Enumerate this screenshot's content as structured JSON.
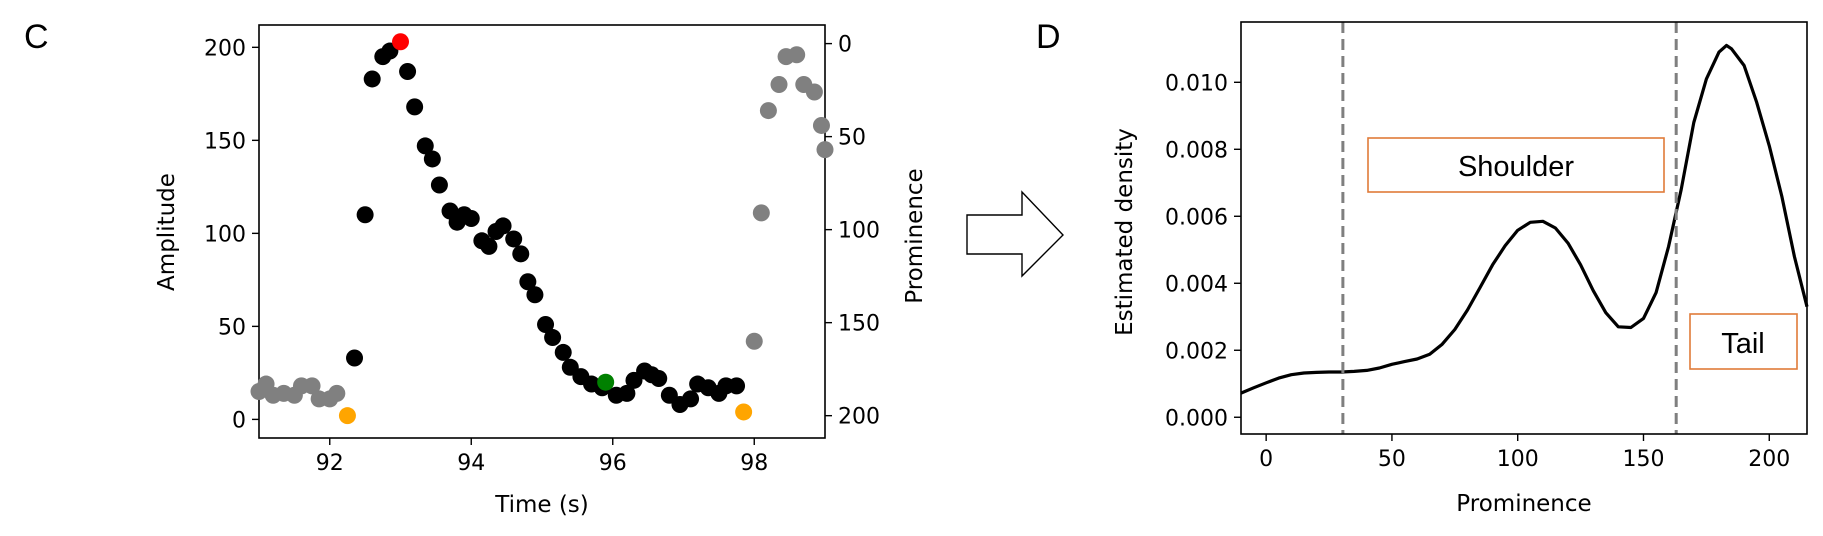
{
  "panels": {
    "left_label": "C",
    "right_label": "D"
  },
  "colors": {
    "black": "#000000",
    "gray": "#808080",
    "red": "#ff0000",
    "green": "#008000",
    "orange": "#ffa500",
    "box": "#e07b39"
  },
  "chart_data": [
    {
      "type": "scatter",
      "panel": "C",
      "xlabel": "Time (s)",
      "ylabel": "Amplitude",
      "y2label": "Prominence",
      "xlim": [
        91.0,
        99.0
      ],
      "ylim": [
        -10,
        212
      ],
      "y2lim": [
        212.0,
        -10.0
      ],
      "xticks": [
        92,
        94,
        96,
        98
      ],
      "yticks": [
        0,
        50,
        100,
        150,
        200
      ],
      "y2ticks": [
        0,
        50,
        100,
        150,
        200
      ],
      "grid": false,
      "series": [
        {
          "role": "outside-window",
          "color": "gray",
          "points": [
            [
              91.0,
              15
            ],
            [
              91.1,
              19
            ],
            [
              91.2,
              13
            ],
            [
              91.35,
              14
            ],
            [
              91.5,
              13
            ],
            [
              91.6,
              18
            ],
            [
              91.75,
              18
            ],
            [
              91.85,
              11
            ],
            [
              92.0,
              11
            ],
            [
              92.1,
              14
            ],
            [
              98.0,
              42
            ],
            [
              98.1,
              111
            ],
            [
              98.2,
              166
            ],
            [
              98.35,
              180
            ],
            [
              98.45,
              195
            ],
            [
              98.6,
              196
            ],
            [
              98.7,
              180
            ],
            [
              98.85,
              176
            ],
            [
              98.95,
              158
            ],
            [
              99.0,
              145
            ]
          ]
        },
        {
          "role": "peak-window",
          "color": "black",
          "points": [
            [
              92.35,
              33
            ],
            [
              92.5,
              110
            ],
            [
              92.6,
              183
            ],
            [
              92.75,
              195
            ],
            [
              92.85,
              198
            ],
            [
              93.1,
              187
            ],
            [
              93.2,
              168
            ],
            [
              93.35,
              147
            ],
            [
              93.45,
              140
            ],
            [
              93.55,
              126
            ],
            [
              93.7,
              112
            ],
            [
              93.8,
              106
            ],
            [
              93.9,
              110
            ],
            [
              94.0,
              108
            ],
            [
              94.15,
              96
            ],
            [
              94.25,
              93
            ],
            [
              94.35,
              101
            ],
            [
              94.45,
              104
            ],
            [
              94.6,
              97
            ],
            [
              94.7,
              89
            ],
            [
              94.8,
              74
            ],
            [
              94.9,
              67
            ],
            [
              95.05,
              51
            ],
            [
              95.15,
              44
            ],
            [
              95.3,
              36
            ],
            [
              95.4,
              28
            ],
            [
              95.55,
              23
            ],
            [
              95.7,
              19
            ],
            [
              95.85,
              17
            ],
            [
              96.05,
              13
            ],
            [
              96.2,
              14
            ],
            [
              96.3,
              21
            ],
            [
              96.45,
              26
            ],
            [
              96.55,
              24
            ],
            [
              96.65,
              22
            ],
            [
              96.8,
              13
            ],
            [
              96.95,
              8
            ],
            [
              97.1,
              11
            ],
            [
              97.2,
              19
            ],
            [
              97.35,
              17
            ],
            [
              97.5,
              14
            ],
            [
              97.6,
              18
            ],
            [
              97.75,
              18
            ]
          ]
        },
        {
          "role": "peak",
          "color": "red",
          "points": [
            [
              93.0,
              203
            ]
          ]
        },
        {
          "role": "shoulder-point",
          "color": "green",
          "points": [
            [
              95.9,
              20
            ]
          ]
        },
        {
          "role": "bases",
          "color": "orange",
          "points": [
            [
              92.25,
              2
            ],
            [
              97.85,
              4
            ]
          ]
        }
      ]
    },
    {
      "type": "line",
      "panel": "D",
      "xlabel": "Prominence",
      "ylabel": "Estimated density",
      "xlim": [
        -10,
        215
      ],
      "ylim": [
        -0.0005,
        0.0118
      ],
      "xticks": [
        0,
        50,
        100,
        150,
        200
      ],
      "yticks": [
        0.0,
        0.002,
        0.004,
        0.006,
        0.008,
        0.01
      ],
      "ytick_labels": [
        "0.000",
        "0.002",
        "0.004",
        "0.006",
        "0.008",
        "0.010"
      ],
      "grid": false,
      "vlines": [
        30.5,
        163
      ],
      "annotations": {
        "shoulder": "Shoulder",
        "tail": "Tail"
      },
      "x": [
        -10,
        -5,
        0,
        5,
        10,
        15,
        20,
        25,
        30,
        35,
        40,
        45,
        50,
        55,
        60,
        65,
        70,
        75,
        80,
        85,
        90,
        95,
        100,
        105,
        110,
        115,
        120,
        125,
        130,
        135,
        140,
        145,
        150,
        155,
        160,
        165,
        170,
        175,
        180,
        183,
        185,
        190,
        195,
        200,
        205,
        210,
        215
      ],
      "y": [
        0.00072,
        0.00088,
        0.00103,
        0.00117,
        0.00127,
        0.00132,
        0.00134,
        0.00135,
        0.00135,
        0.00137,
        0.0014,
        0.00147,
        0.00158,
        0.00166,
        0.00174,
        0.00188,
        0.00218,
        0.00262,
        0.0032,
        0.00387,
        0.00455,
        0.00512,
        0.00558,
        0.00582,
        0.00585,
        0.00565,
        0.0052,
        0.00455,
        0.00378,
        0.00312,
        0.0027,
        0.00268,
        0.00295,
        0.00372,
        0.0051,
        0.0068,
        0.0088,
        0.0101,
        0.0109,
        0.0111,
        0.011,
        0.0105,
        0.0094,
        0.0081,
        0.0066,
        0.0048,
        0.0033
      ]
    }
  ]
}
